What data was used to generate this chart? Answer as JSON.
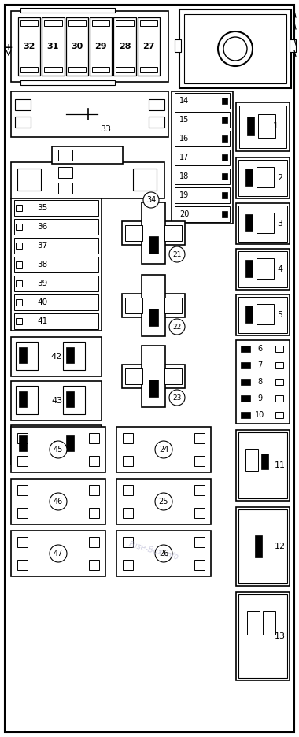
{
  "bg_color": "#ffffff",
  "fig_w": 3.8,
  "fig_h": 9.36,
  "dpi": 100,
  "watermark": "Fuse-Box.info"
}
